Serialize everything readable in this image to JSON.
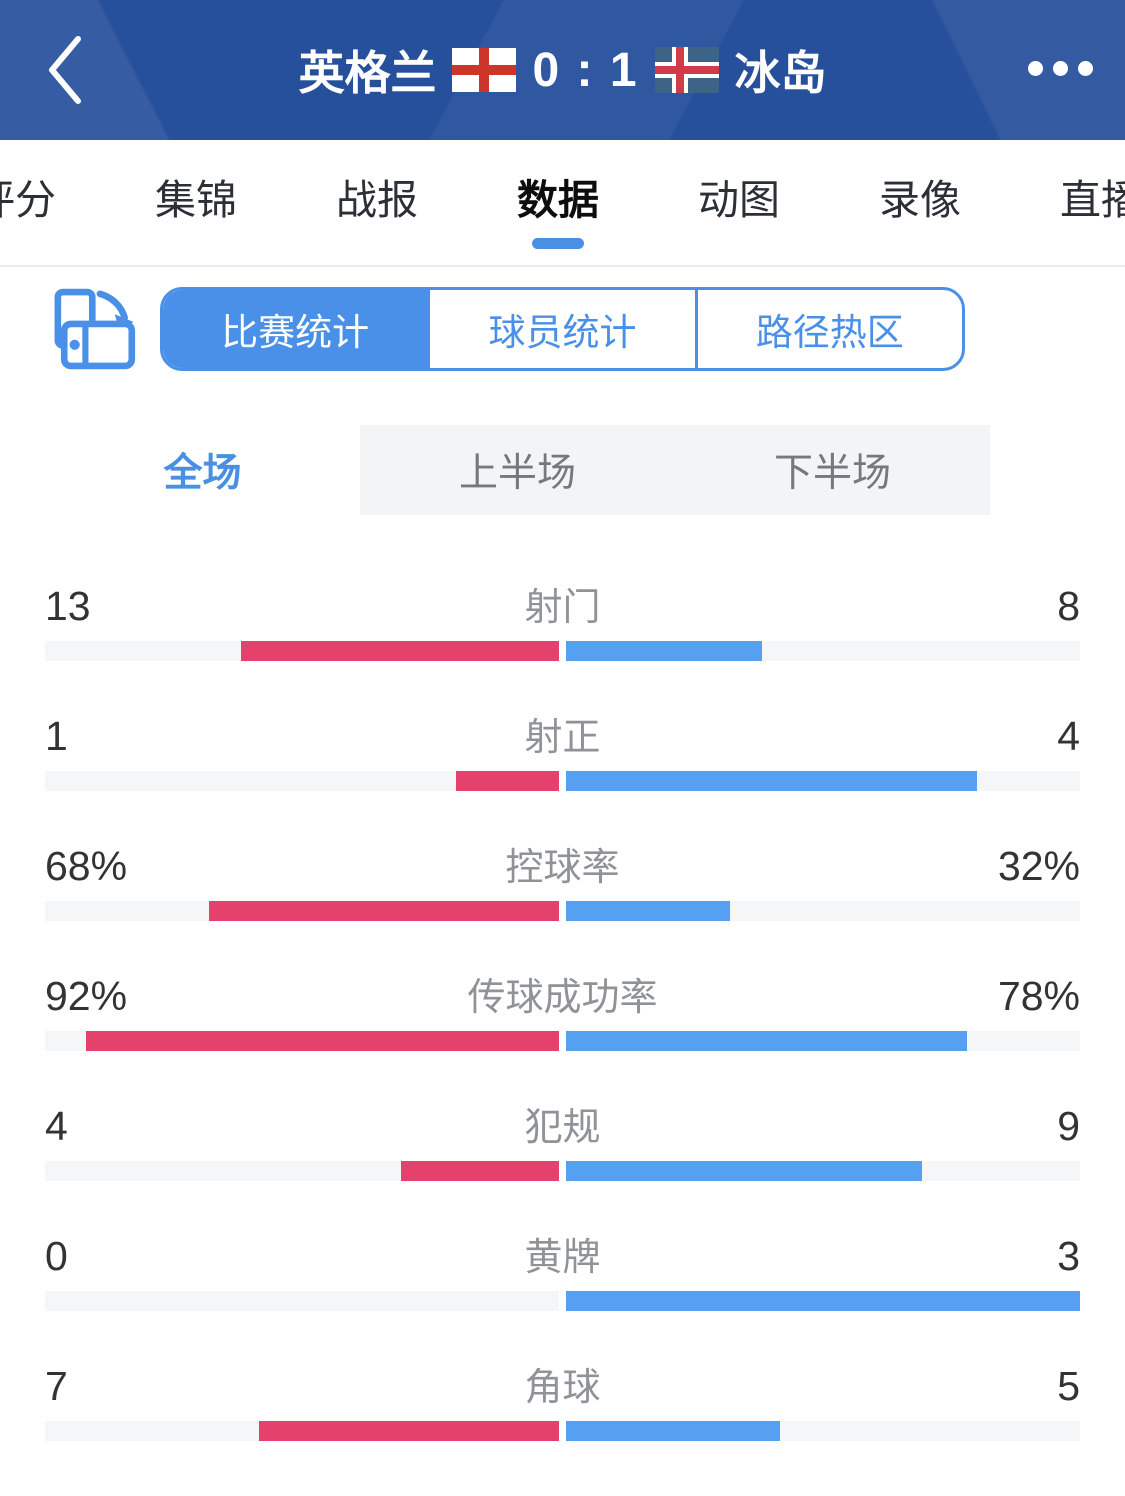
{
  "colors": {
    "header_bg": "#27509c",
    "accent_blue": "#4a90e8",
    "tab_indicator_blue": "#4a90e2",
    "bar_red": "#e4426c",
    "bar_blue": "#55a0f0",
    "bar_track": "#f5f6f8",
    "england_red": "#cd342a",
    "iceland_blue": "#3d6386",
    "iceland_red": "#d03c48"
  },
  "icons": {
    "back": "chevron-left",
    "more": "ellipsis-horizontal",
    "rotate": "rotate-device",
    "home_flag": "england-flag",
    "away_flag": "iceland-flag"
  },
  "header": {
    "home_team": "英格兰",
    "score": "0 : 1",
    "away_team": "冰岛"
  },
  "nav_tabs": {
    "items": [
      {
        "label": "评分",
        "selected": false
      },
      {
        "label": "集锦",
        "selected": false
      },
      {
        "label": "战报",
        "selected": false
      },
      {
        "label": "数据",
        "selected": true
      },
      {
        "label": "动图",
        "selected": false
      },
      {
        "label": "录像",
        "selected": false
      },
      {
        "label": "直播",
        "selected": false
      }
    ]
  },
  "view_switcher": {
    "items": [
      {
        "label": "比赛统计",
        "selected": true
      },
      {
        "label": "球员统计",
        "selected": false
      },
      {
        "label": "路径热区",
        "selected": false
      }
    ]
  },
  "period_tabs": {
    "items": [
      {
        "label": "全场",
        "selected": true
      },
      {
        "label": "上半场",
        "selected": false
      },
      {
        "label": "下半场",
        "selected": false
      }
    ]
  },
  "stats": {
    "rows": [
      {
        "label": "射门",
        "home": "13",
        "away": "8"
      },
      {
        "label": "射正",
        "home": "1",
        "away": "4"
      },
      {
        "label": "控球率",
        "home": "68%",
        "away": "32%"
      },
      {
        "label": "传球成功率",
        "home": "92%",
        "away": "78%"
      },
      {
        "label": "犯规",
        "home": "4",
        "away": "9"
      },
      {
        "label": "黄牌",
        "home": "0",
        "away": "3"
      },
      {
        "label": "角球",
        "home": "7",
        "away": "5"
      }
    ]
  },
  "chart_data": {
    "type": "bar",
    "title": "比赛统计 - 全场 (英格兰 0 : 1 冰岛)",
    "categories": [
      "射门",
      "射正",
      "控球率",
      "传球成功率",
      "犯规",
      "黄牌",
      "角球"
    ],
    "series": [
      {
        "name": "英格兰",
        "color": "#e4426c",
        "values": [
          13,
          1,
          68,
          92,
          4,
          0,
          7
        ]
      },
      {
        "name": "冰岛",
        "color": "#55a0f0",
        "values": [
          8,
          4,
          32,
          78,
          9,
          3,
          5
        ]
      }
    ],
    "percent_categories": [
      "控球率",
      "传球成功率"
    ],
    "layout": "diverging-from-center, home left (red), away right (blue), count rows scaled by share of total, percent rows scaled by value/100"
  }
}
